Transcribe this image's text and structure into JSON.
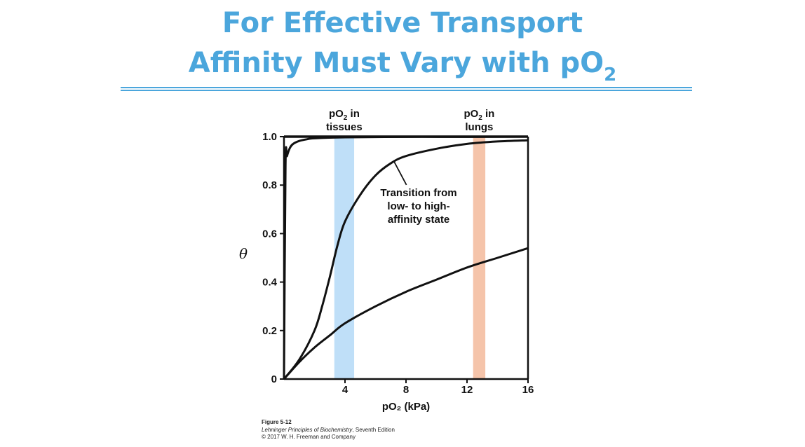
{
  "slide": {
    "title_line1": "For Effective Transport",
    "title_line2_main": "Affinity Must Vary with pO",
    "title_line2_sub": "2"
  },
  "chart_data": {
    "type": "line",
    "xlabel": "pO₂ (kPa)",
    "ylabel": "θ",
    "xlim": [
      0,
      16
    ],
    "ylim": [
      0,
      1.0
    ],
    "x_ticks": [
      "4",
      "8",
      "12",
      "16"
    ],
    "y_ticks": [
      "1.0",
      "0.8",
      "0.6",
      "0.4",
      "0.2",
      "0"
    ],
    "grid": false,
    "series": [
      {
        "style": "high-affinity curve",
        "x": [
          0,
          0.1,
          0.2,
          0.4,
          0.6,
          1.0,
          1.5,
          2.0,
          4,
          8,
          12,
          16
        ],
        "y": [
          0,
          0.88,
          0.92,
          0.955,
          0.97,
          0.982,
          0.989,
          0.993,
          0.997,
          0.999,
          0.999,
          1.0
        ]
      },
      {
        "style": "sigmoid curve",
        "x": [
          0,
          1,
          2,
          2.5,
          3,
          3.5,
          4,
          5,
          6,
          7,
          8,
          10,
          12,
          14,
          16
        ],
        "y": [
          0,
          0.08,
          0.2,
          0.3,
          0.42,
          0.55,
          0.65,
          0.76,
          0.84,
          0.89,
          0.92,
          0.95,
          0.97,
          0.98,
          0.985
        ]
      },
      {
        "style": "low-affinity curve",
        "x": [
          0,
          1,
          2,
          3,
          4,
          6,
          8,
          10,
          12,
          14,
          16
        ],
        "y": [
          0,
          0.07,
          0.13,
          0.18,
          0.23,
          0.3,
          0.36,
          0.41,
          0.46,
          0.5,
          0.54
        ]
      }
    ],
    "bands": [
      {
        "name_main": "pO",
        "name_sub": "2",
        "name_rest": " in",
        "name_line2": "tissues",
        "x_range": [
          3.3,
          4.6
        ],
        "color": "#bfdff8"
      },
      {
        "name_main": "pO",
        "name_sub": "2",
        "name_rest": " in",
        "name_line2": "lungs",
        "x_range": [
          12.4,
          13.2
        ],
        "color": "#f5c4aa"
      }
    ],
    "annotation": {
      "lines": [
        "Transition from",
        "low- to high-",
        "affinity state"
      ],
      "points_to": {
        "x": 7.2,
        "y": 0.905
      }
    }
  },
  "credits": {
    "figure": "Figure 5-12",
    "book_title": "Lehninger Principles of Biochemistry",
    "book_edition": ", Seventh Edition",
    "copyright": "© 2017 W. H. Freeman and Company"
  }
}
